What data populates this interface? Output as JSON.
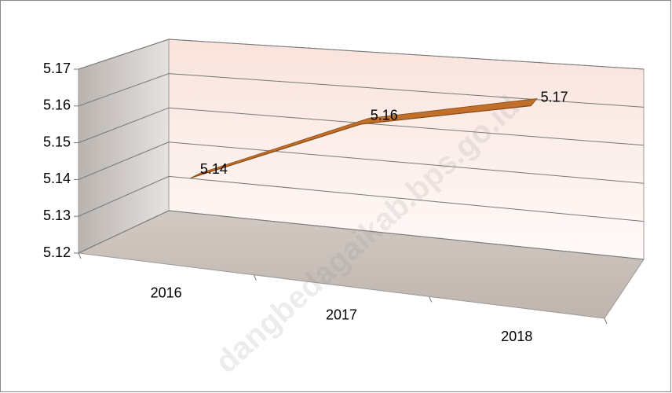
{
  "chart_data": {
    "type": "line3d",
    "categories": [
      "2016",
      "2017",
      "2018"
    ],
    "values": [
      5.14,
      5.16,
      5.17
    ],
    "color": "#c0702a",
    "ylim": [
      5.12,
      5.17
    ],
    "yticks": [
      5.12,
      5.13,
      5.14,
      5.15,
      5.16,
      5.17
    ],
    "grid": true,
    "watermark": "dangbedagaikab.bps.go.id"
  }
}
